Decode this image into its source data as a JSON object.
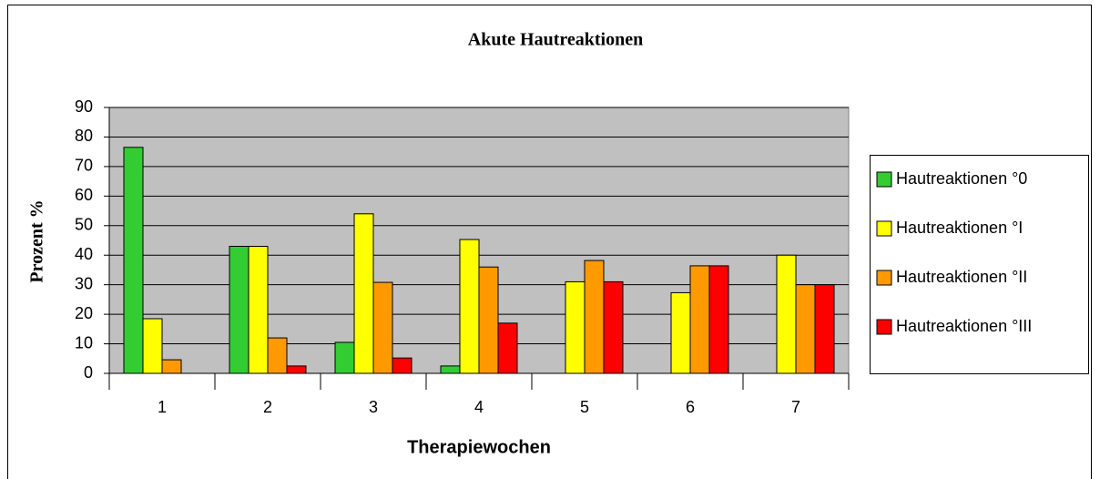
{
  "chart_data": {
    "type": "bar",
    "title": "Akute Hautreaktionen",
    "x_label": "Therapiewochen",
    "y_label": "Prozent %",
    "categories": [
      "1",
      "2",
      "3",
      "4",
      "5",
      "6",
      "7"
    ],
    "series": [
      {
        "name": "Hautreaktionen °0",
        "color": "#33cc33",
        "values": [
          76.5,
          43,
          10.5,
          2.5,
          0,
          0,
          0
        ]
      },
      {
        "name": "Hautreaktionen °I",
        "color": "#ffff00",
        "values": [
          18.5,
          43,
          54,
          45.3,
          31,
          27.3,
          40
        ]
      },
      {
        "name": "Hautreaktionen °II",
        "color": "#ff9900",
        "values": [
          4.6,
          12,
          30.8,
          36,
          38.2,
          36.4,
          30
        ]
      },
      {
        "name": "Hautreaktionen °III",
        "color": "#ff0000",
        "values": [
          0,
          2.5,
          5.2,
          17,
          31,
          36.4,
          30
        ]
      }
    ],
    "ylim": [
      0,
      90
    ],
    "yticks": [
      0,
      10,
      20,
      30,
      40,
      50,
      60,
      70,
      80,
      90
    ],
    "grid": true,
    "legend": "right"
  }
}
